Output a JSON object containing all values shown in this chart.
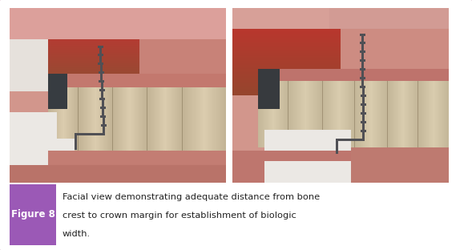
{
  "figure_label": "Figure 8",
  "figure_label_bg": "#9b59b6",
  "figure_label_color": "#ffffff",
  "caption_lines": [
    "Facial view demonstrating adequate distance from bone",
    "crest to crown margin for establishment of biologic",
    "width."
  ],
  "caption_color": "#222222",
  "border_color": "#c878a8",
  "background_color": "#ffffff",
  "fig_width": 5.89,
  "fig_height": 3.12,
  "label_font_size": 8.5,
  "caption_font_size": 8.2
}
